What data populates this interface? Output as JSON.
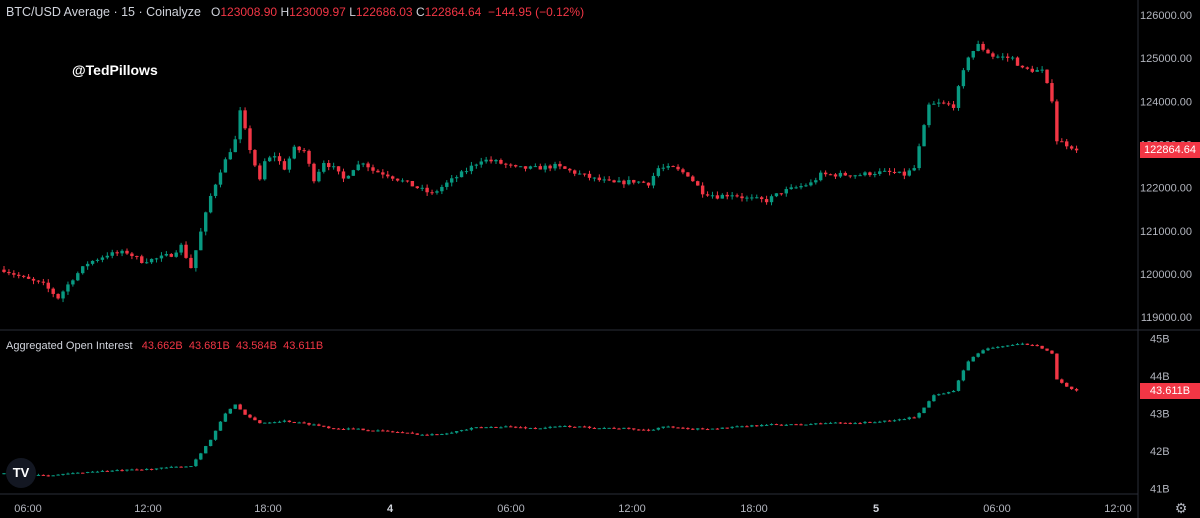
{
  "header": {
    "symbol": "BTC/USD Average · 15 · Coinalyze",
    "open_label": "O",
    "open": "123008.90",
    "high_label": "H",
    "high": "123009.97",
    "low_label": "L",
    "low": "122686.03",
    "close_label": "C",
    "close": "122864.64",
    "change": "−144.95 (−0.12%)"
  },
  "watermark": "@TedPillows",
  "oi_header": {
    "title": "Aggregated Open Interest",
    "values": [
      "43.662B",
      "43.681B",
      "43.584B",
      "43.611B"
    ]
  },
  "price_tag": "122864.64",
  "oi_tag": "43.611B",
  "logo_text": "TV",
  "colors": {
    "up": "#089981",
    "down": "#f23645",
    "background": "#000000",
    "axis_text": "#b2b5be"
  },
  "chart_data": [
    {
      "type": "candlestick",
      "title": "BTC/USD Average · 15 · Coinalyze",
      "x_ticks": [
        "06:00",
        "12:00",
        "18:00",
        "4",
        "06:00",
        "12:00",
        "18:00",
        "5",
        "06:00",
        "12:00"
      ],
      "y_ticks": [
        "126000.00",
        "125000.00",
        "124000.00",
        "123000.00",
        "122000.00",
        "121000.00",
        "120000.00",
        "119000.00"
      ],
      "ylim": [
        118700,
        126350
      ],
      "anchor_points": [
        [
          0,
          120100
        ],
        [
          4,
          119900
        ],
        [
          8,
          119750
        ],
        [
          11,
          119450
        ],
        [
          14,
          119900
        ],
        [
          17,
          120250
        ],
        [
          21,
          120450
        ],
        [
          25,
          120500
        ],
        [
          28,
          120300
        ],
        [
          31,
          120350
        ],
        [
          34,
          120450
        ],
        [
          36,
          120650
        ],
        [
          38,
          120150
        ],
        [
          39,
          120550
        ],
        [
          42,
          121800
        ],
        [
          44,
          122400
        ],
        [
          47,
          123100
        ],
        [
          48,
          123750
        ],
        [
          50,
          122900
        ],
        [
          52,
          122150
        ],
        [
          53,
          122600
        ],
        [
          55,
          122750
        ],
        [
          57,
          122450
        ],
        [
          59,
          122900
        ],
        [
          61,
          122850
        ],
        [
          63,
          122200
        ],
        [
          65,
          122600
        ],
        [
          67,
          122450
        ],
        [
          69,
          122200
        ],
        [
          71,
          122450
        ],
        [
          73,
          122600
        ],
        [
          75,
          122400
        ],
        [
          78,
          122300
        ],
        [
          81,
          122150
        ],
        [
          84,
          122000
        ],
        [
          87,
          121850
        ],
        [
          90,
          122100
        ],
        [
          94,
          122400
        ],
        [
          97,
          122650
        ],
        [
          100,
          122600
        ],
        [
          104,
          122450
        ],
        [
          108,
          122450
        ],
        [
          112,
          122500
        ],
        [
          116,
          122350
        ],
        [
          120,
          122200
        ],
        [
          124,
          122100
        ],
        [
          128,
          122150
        ],
        [
          131,
          122100
        ],
        [
          133,
          122450
        ],
        [
          136,
          122450
        ],
        [
          139,
          122300
        ],
        [
          142,
          121900
        ],
        [
          145,
          121800
        ],
        [
          148,
          121850
        ],
        [
          151,
          121750
        ],
        [
          155,
          121700
        ],
        [
          158,
          121900
        ],
        [
          161,
          122000
        ],
        [
          164,
          122100
        ],
        [
          166,
          122300
        ],
        [
          170,
          122300
        ],
        [
          174,
          122300
        ],
        [
          177,
          122350
        ],
        [
          180,
          122350
        ],
        [
          183,
          122300
        ],
        [
          185,
          122450
        ],
        [
          187,
          123400
        ],
        [
          188,
          123900
        ],
        [
          190,
          123950
        ],
        [
          193,
          123900
        ],
        [
          194,
          124300
        ],
        [
          196,
          125050
        ],
        [
          198,
          125300
        ],
        [
          201,
          125050
        ],
        [
          205,
          125000
        ],
        [
          207,
          124750
        ],
        [
          211,
          124700
        ],
        [
          213,
          124050
        ],
        [
          214,
          123100
        ],
        [
          217,
          122950
        ],
        [
          218,
          122864.64
        ]
      ]
    },
    {
      "type": "candlestick",
      "title": "Aggregated Open Interest",
      "y_ticks": [
        "45B",
        "44B",
        "43B",
        "42B",
        "41B"
      ],
      "ylim": [
        40.85,
        45.2
      ],
      "anchor_points": [
        [
          0,
          41.4
        ],
        [
          10,
          41.35
        ],
        [
          18,
          41.45
        ],
        [
          28,
          41.5
        ],
        [
          38,
          41.6
        ],
        [
          42,
          42.3
        ],
        [
          45,
          43.0
        ],
        [
          47,
          43.25
        ],
        [
          49,
          42.95
        ],
        [
          52,
          42.75
        ],
        [
          57,
          42.8
        ],
        [
          63,
          42.7
        ],
        [
          67,
          42.6
        ],
        [
          72,
          42.58
        ],
        [
          80,
          42.5
        ],
        [
          86,
          42.42
        ],
        [
          90,
          42.48
        ],
        [
          96,
          42.62
        ],
        [
          102,
          42.65
        ],
        [
          108,
          42.6
        ],
        [
          114,
          42.66
        ],
        [
          120,
          42.62
        ],
        [
          126,
          42.6
        ],
        [
          131,
          42.55
        ],
        [
          134,
          42.65
        ],
        [
          139,
          42.58
        ],
        [
          145,
          42.6
        ],
        [
          150,
          42.65
        ],
        [
          156,
          42.7
        ],
        [
          162,
          42.7
        ],
        [
          168,
          42.75
        ],
        [
          174,
          42.75
        ],
        [
          180,
          42.8
        ],
        [
          185,
          42.9
        ],
        [
          187,
          43.15
        ],
        [
          189,
          43.5
        ],
        [
          193,
          43.6
        ],
        [
          196,
          44.4
        ],
        [
          199,
          44.7
        ],
        [
          203,
          44.8
        ],
        [
          207,
          44.85
        ],
        [
          210,
          44.82
        ],
        [
          213,
          44.6
        ],
        [
          214,
          43.9
        ],
        [
          216,
          43.7
        ],
        [
          218,
          43.611
        ]
      ]
    }
  ]
}
